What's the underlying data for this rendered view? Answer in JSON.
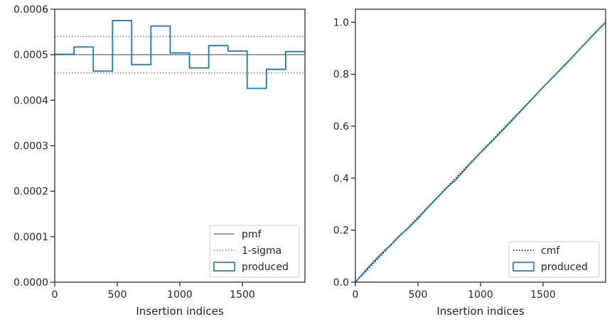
{
  "chart_data": [
    {
      "type": "line",
      "step": true,
      "xlabel": "Insertion indices",
      "ylabel": "",
      "xlim": [
        0,
        2000
      ],
      "ylim": [
        0,
        0.0006
      ],
      "xticks": [
        0,
        500,
        1000,
        1500
      ],
      "xtick_labels": [
        "0",
        "500",
        "1000",
        "1500"
      ],
      "yticks": [
        0,
        0.0001,
        0.0002,
        0.0003,
        0.0004,
        0.0005,
        0.0006
      ],
      "ytick_labels": [
        "0.0000",
        "0.0001",
        "0.0002",
        "0.0003",
        "0.0004",
        "0.0005",
        "0.0006"
      ],
      "legend_position": "lower-right",
      "grid": false,
      "series": [
        {
          "name": "pmf",
          "style": "solid",
          "color": "#808080",
          "x": [
            0,
            2000
          ],
          "y": [
            0.0005,
            0.0005
          ]
        },
        {
          "name": "1-sigma",
          "style": "dotted",
          "color": "#808080",
          "x": [
            0,
            2000
          ],
          "y": [
            0.00054,
            0.00054
          ]
        },
        {
          "name": "1-sigma-lower",
          "legend": false,
          "style": "dotted",
          "color": "#808080",
          "x": [
            0,
            2000
          ],
          "y": [
            0.00046,
            0.00046
          ]
        },
        {
          "name": "produced",
          "style": "step",
          "color": "#1f77b4",
          "bin_edges": [
            0,
            154,
            308,
            462,
            615,
            769,
            923,
            1077,
            1231,
            1385,
            1538,
            1692,
            1846,
            2000
          ],
          "values": [
            0.000501,
            0.000517,
            0.000464,
            0.000575,
            0.000478,
            0.000563,
            0.000504,
            0.000471,
            0.00052,
            0.000508,
            0.000426,
            0.000468,
            0.000507
          ]
        }
      ]
    },
    {
      "type": "line",
      "xlabel": "Insertion indices",
      "ylabel": "",
      "xlim": [
        0,
        2000
      ],
      "ylim": [
        0,
        1.05
      ],
      "xticks": [
        0,
        500,
        1000,
        1500
      ],
      "xtick_labels": [
        "0",
        "500",
        "1000",
        "1500"
      ],
      "yticks": [
        0,
        0.2,
        0.4,
        0.6,
        0.8,
        1.0
      ],
      "ytick_labels": [
        "0.0",
        "0.2",
        "0.4",
        "0.6",
        "0.8",
        "1.0"
      ],
      "legend_position": "lower-right",
      "grid": false,
      "series": [
        {
          "name": "cmf",
          "style": "dotted",
          "color": "#000000",
          "x": [
            0,
            2000
          ],
          "y": [
            0,
            1
          ]
        },
        {
          "name": "produced",
          "style": "step",
          "color": "#1f77b4",
          "x": [
            0,
            100,
            200,
            300,
            350,
            400,
            500,
            600,
            700,
            750,
            800,
            900,
            1000,
            1100,
            1200,
            1300,
            1400,
            1500,
            1600,
            1700,
            1800,
            1900,
            2000
          ],
          "y": [
            0,
            0.055,
            0.106,
            0.152,
            0.178,
            0.198,
            0.245,
            0.298,
            0.348,
            0.372,
            0.392,
            0.447,
            0.498,
            0.546,
            0.596,
            0.647,
            0.698,
            0.75,
            0.799,
            0.848,
            0.9,
            0.951,
            1.0
          ]
        }
      ]
    }
  ]
}
